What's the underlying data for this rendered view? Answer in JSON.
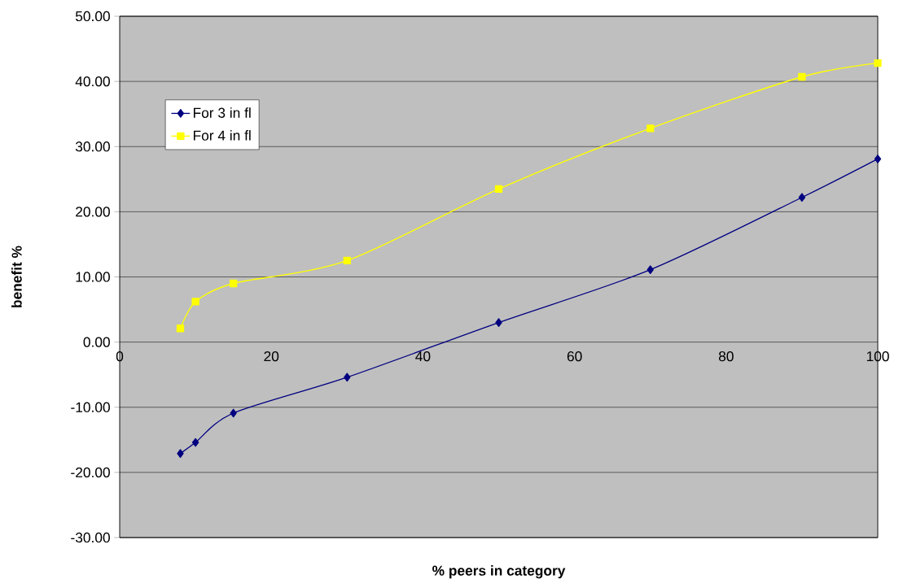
{
  "chart_data": {
    "type": "line",
    "xlabel": "% peers in category",
    "ylabel": "benefit %",
    "x": [
      8,
      10,
      15,
      30,
      50,
      70,
      90,
      100
    ],
    "series": [
      {
        "name": "For 3 in fl",
        "color": "#000080",
        "marker": "diamond",
        "values": [
          -17.1,
          -15.4,
          -10.9,
          -5.4,
          3.0,
          11.1,
          22.2,
          28.1
        ]
      },
      {
        "name": "For 4 in fl",
        "color": "#ffff00",
        "marker": "square",
        "values": [
          2.1,
          6.2,
          9.0,
          12.5,
          23.5,
          32.8,
          40.7,
          42.8
        ]
      }
    ],
    "xlim": [
      0,
      100
    ],
    "xticks": [
      0,
      20,
      40,
      60,
      80,
      100
    ],
    "ylim": [
      -30,
      50
    ],
    "yticks": [
      {
        "value": -30,
        "label": "-30.00"
      },
      {
        "value": -20,
        "label": "-20.00"
      },
      {
        "value": -10,
        "label": "-10.00"
      },
      {
        "value": 0,
        "label": "0.00"
      },
      {
        "value": 10,
        "label": "10.00"
      },
      {
        "value": 20,
        "label": "20.00"
      },
      {
        "value": 30,
        "label": "30.00"
      },
      {
        "value": 40,
        "label": "40.00"
      },
      {
        "value": 50,
        "label": "50.00"
      }
    ],
    "grid": "y",
    "legend": "top left",
    "line_style": "solid"
  }
}
